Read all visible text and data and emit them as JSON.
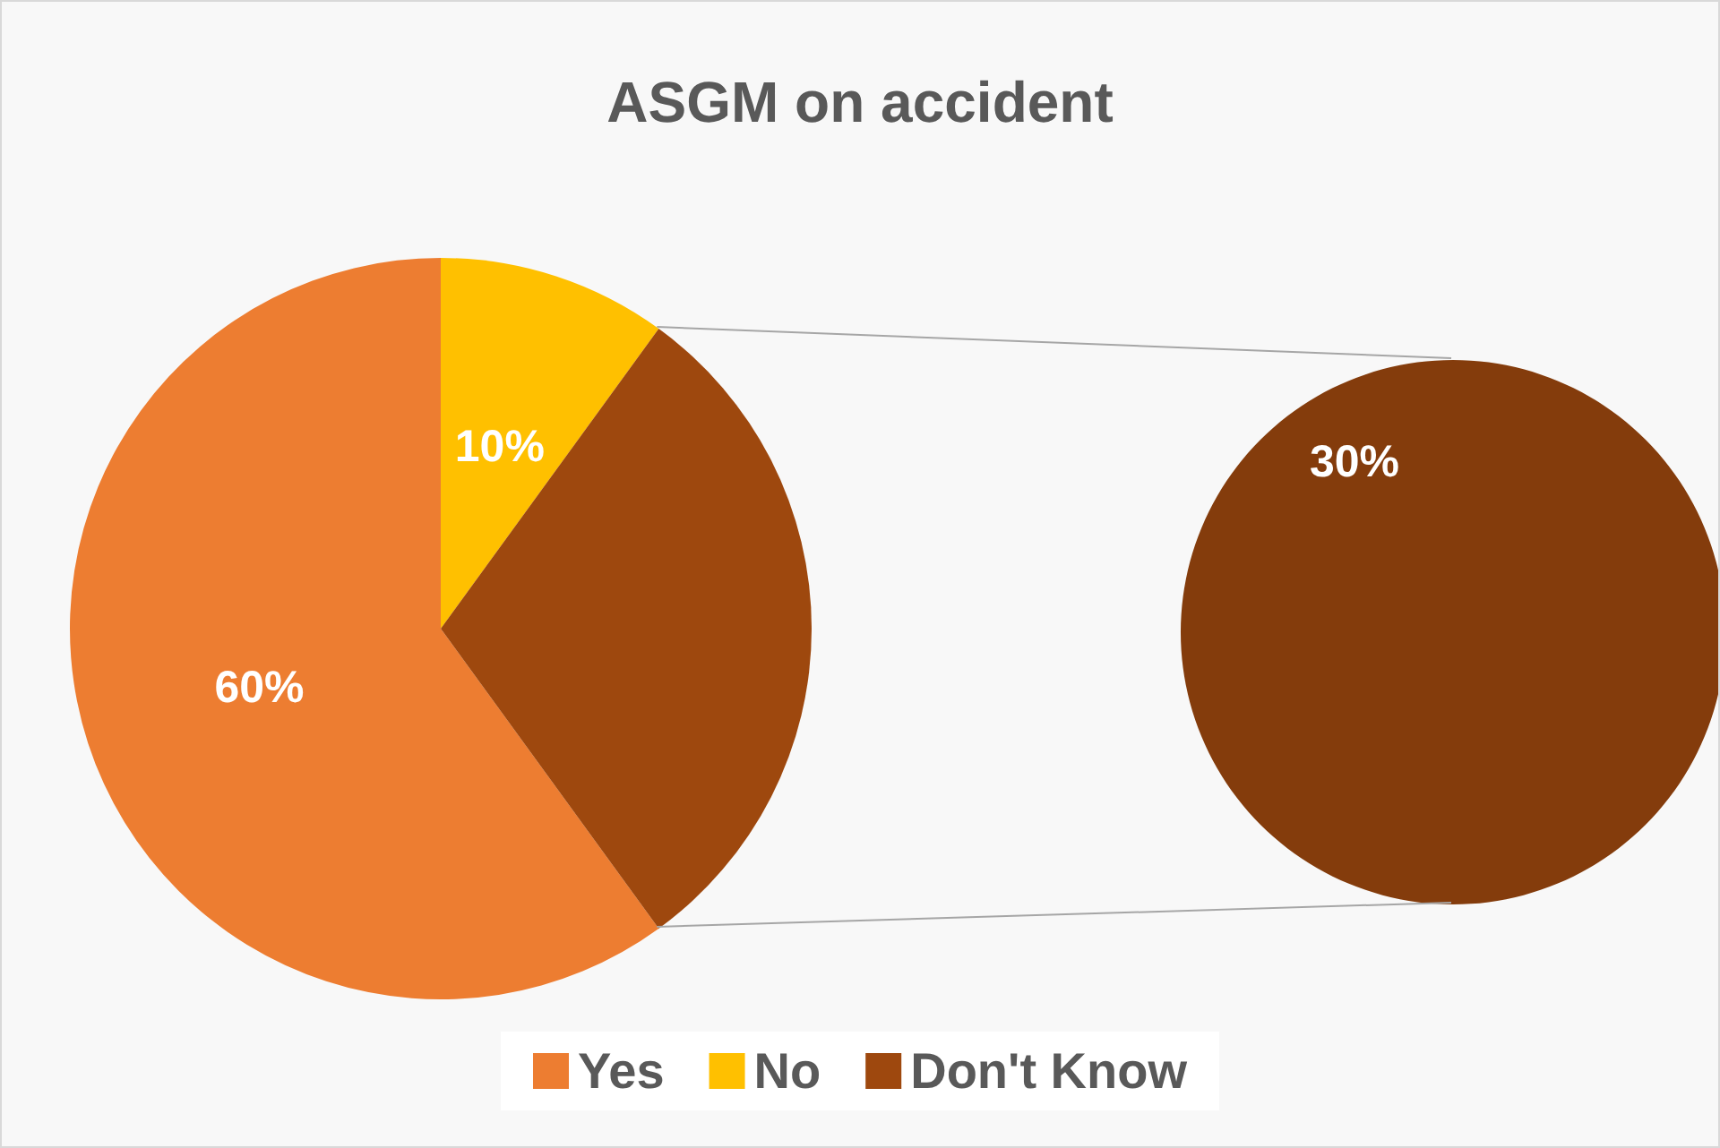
{
  "chart_data": {
    "type": "pie",
    "title": "ASGM on accident",
    "categories": [
      "Yes",
      "No",
      "Don't Know"
    ],
    "series": [
      {
        "values": [
          60,
          10,
          30
        ],
        "colors": [
          "#ed7d31",
          "#ffc000",
          "#9e480e"
        ],
        "value_labels": [
          "60%",
          "10%",
          null
        ]
      },
      {
        "values": [
          null,
          null,
          30
        ],
        "colors": [
          null,
          null,
          "#843c0c"
        ],
        "value_labels": [
          null,
          null,
          "30%"
        ]
      }
    ],
    "legend": "bottom"
  }
}
